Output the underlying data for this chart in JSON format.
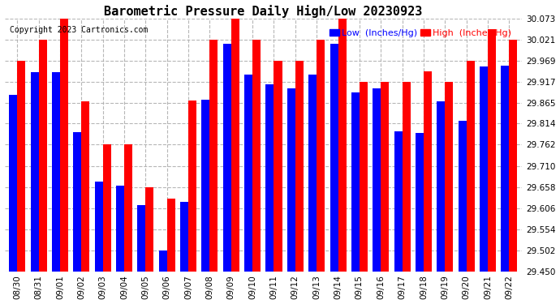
{
  "title": "Barometric Pressure Daily High/Low 20230923",
  "copyright": "Copyright 2023 Cartronics.com",
  "legend_low": "Low  (Inches/Hg)",
  "legend_high": "High  (Inches/Hg)",
  "ylim": [
    29.45,
    30.073
  ],
  "yticks": [
    29.45,
    29.502,
    29.554,
    29.606,
    29.658,
    29.71,
    29.762,
    29.814,
    29.865,
    29.917,
    29.969,
    30.021,
    30.073
  ],
  "dates": [
    "08/30",
    "08/31",
    "09/01",
    "09/02",
    "09/03",
    "09/04",
    "09/05",
    "09/06",
    "09/07",
    "09/08",
    "09/09",
    "09/10",
    "09/11",
    "09/12",
    "09/13",
    "09/14",
    "09/15",
    "09/16",
    "09/17",
    "09/18",
    "09/19",
    "09/20",
    "09/21",
    "09/22"
  ],
  "low_values": [
    29.884,
    29.94,
    29.94,
    29.792,
    29.672,
    29.662,
    29.614,
    29.502,
    29.622,
    29.872,
    30.01,
    29.935,
    29.91,
    29.9,
    29.935,
    30.01,
    29.89,
    29.9,
    29.795,
    29.79,
    29.868,
    29.82,
    29.954,
    29.956
  ],
  "high_values": [
    29.969,
    30.021,
    30.073,
    29.869,
    29.762,
    29.762,
    29.658,
    29.63,
    29.87,
    30.021,
    30.073,
    30.021,
    29.969,
    29.969,
    30.021,
    30.073,
    29.917,
    29.917,
    29.917,
    29.942,
    29.917,
    29.969,
    30.047,
    30.021
  ],
  "baseline": 29.45,
  "low_color": "#0000ff",
  "high_color": "#ff0000",
  "bg_color": "#ffffff",
  "grid_color": "#b0b0b0",
  "bar_width": 0.38,
  "title_fontsize": 11,
  "tick_fontsize": 7.5,
  "legend_fontsize": 8,
  "copyright_fontsize": 7
}
